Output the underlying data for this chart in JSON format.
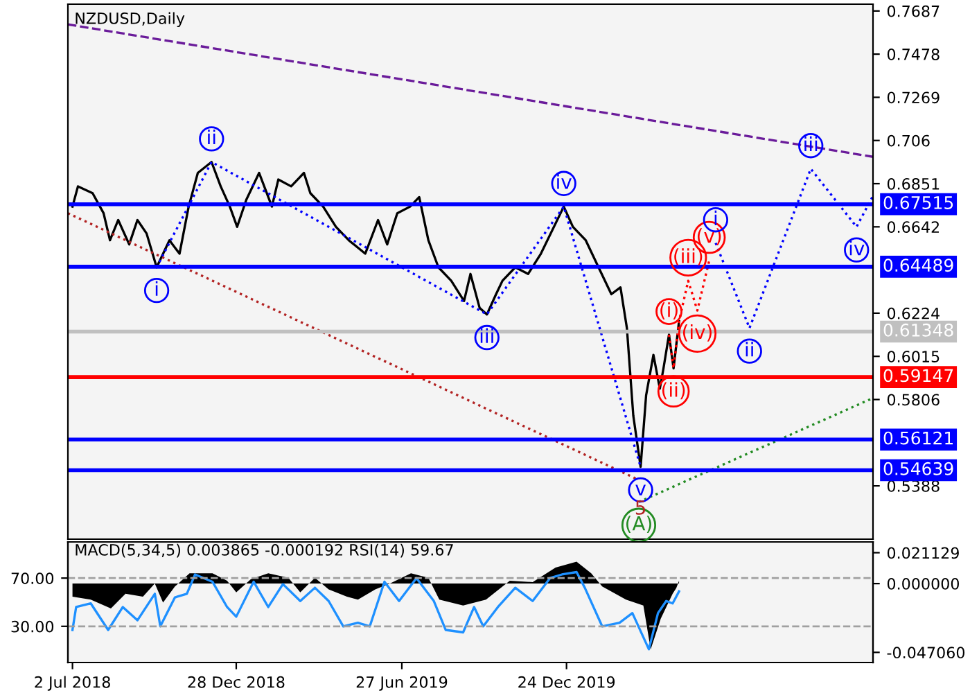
{
  "chart_data": [
    {
      "type": "line",
      "title": "NZDUSD,Daily",
      "xlim": [
        "2018-06-27",
        "2020-11-23"
      ],
      "ylim": [
        0.513,
        0.772
      ],
      "yticks": [
        0.7687,
        0.7478,
        0.7269,
        0.706,
        0.6851,
        0.6642,
        0.6224,
        0.6015,
        0.5806,
        0.5388
      ],
      "tick_labels": "y",
      "series": [
        {
          "color": "#000000",
          "line_style": "solid",
          "x": [
            "2018-07-02",
            "2018-07-08",
            "2018-07-24",
            "2018-08-05",
            "2018-08-12",
            "2018-08-21",
            "2018-09-02",
            "2018-09-11",
            "2018-09-21",
            "2018-10-02",
            "2018-10-16",
            "2018-10-27",
            "2018-11-06",
            "2018-11-16",
            "2018-12-01",
            "2018-12-11",
            "2018-12-21",
            "2018-12-29",
            "2019-01-08",
            "2019-01-22",
            "2019-02-05",
            "2019-02-12",
            "2019-02-26",
            "2019-03-12",
            "2019-03-19",
            "2019-04-02",
            "2019-04-16",
            "2019-04-30",
            "2019-05-18",
            "2019-06-01",
            "2019-06-11",
            "2019-06-22",
            "2019-07-06",
            "2019-07-16",
            "2019-07-26",
            "2019-08-06",
            "2019-08-20",
            "2019-09-03",
            "2019-09-10",
            "2019-09-20",
            "2019-09-28",
            "2019-10-08",
            "2019-10-15",
            "2019-10-29",
            "2019-11-12",
            "2019-11-26",
            "2019-12-21",
            "2019-12-31",
            "2020-01-14",
            "2020-01-28",
            "2020-02-11",
            "2020-02-21",
            "2020-02-28",
            "2020-03-06",
            "2020-03-14",
            "2020-03-20",
            "2020-03-28",
            "2020-04-04",
            "2020-04-08",
            "2020-04-14",
            "2020-04-19",
            "2020-04-25"
          ],
          "values": [
            0.674,
            0.6838,
            0.6805,
            0.6708,
            0.6577,
            0.6675,
            0.6557,
            0.6675,
            0.661,
            0.6446,
            0.6577,
            0.6512,
            0.674,
            0.6903,
            0.6956,
            0.6838,
            0.674,
            0.6642,
            0.6773,
            0.6903,
            0.674,
            0.6871,
            0.6838,
            0.6903,
            0.6805,
            0.674,
            0.6642,
            0.6577,
            0.6512,
            0.6675,
            0.6557,
            0.6708,
            0.674,
            0.6786,
            0.6577,
            0.6446,
            0.6381,
            0.6283,
            0.6414,
            0.625,
            0.6218,
            0.6316,
            0.6381,
            0.6446,
            0.6414,
            0.6512,
            0.674,
            0.6642,
            0.6577,
            0.6446,
            0.6316,
            0.6349,
            0.6152,
            0.5728,
            0.548,
            0.5826,
            0.6022,
            0.5859,
            0.5957,
            0.612,
            0.5957,
            0.6185
          ]
        },
        {
          "color": "#ff0000",
          "line_style": "dotted",
          "x": [
            "2020-04-14",
            "2020-04-19",
            "2020-04-25",
            "2020-05-05",
            "2020-05-15",
            "2020-05-28"
          ],
          "values": [
            0.612,
            0.5957,
            0.6185,
            0.6381,
            0.6237,
            0.6479
          ],
          "value_labels": [
            "(i)",
            "(ii)",
            null,
            "(iii)",
            "(iv)",
            "(v)"
          ]
        },
        {
          "color": "#0000ff",
          "line_style": "dotted",
          "x": [
            "2020-06-04",
            "2020-07-11",
            "2020-09-16",
            "2020-11-05",
            "2020-11-23"
          ],
          "values": [
            0.6564,
            0.6152,
            0.6923,
            0.6642,
            0.6792
          ],
          "value_labels": [
            "i",
            "ii",
            "iii",
            "iv",
            null
          ]
        },
        {
          "color": "#0000ff",
          "line_style": "dotted",
          "x": [
            "2018-10-02",
            "2018-12-01",
            "2019-09-28",
            "2019-12-21",
            "2020-03-14"
          ],
          "values": [
            0.6446,
            0.6956,
            0.6218,
            0.674,
            0.548
          ],
          "value_labels": [
            "i",
            "ii",
            "iii",
            "iv",
            "v"
          ]
        },
        {
          "color": "#6a1b9a",
          "line_style": "dashed",
          "x": [
            "2018-06-27",
            "2020-11-23"
          ],
          "values": [
            0.7622,
            0.6981
          ]
        },
        {
          "color": "#b22222",
          "line_style": "dotted",
          "x": [
            "2018-06-27",
            "2020-03-10"
          ],
          "values": [
            0.6708,
            0.5421
          ]
        },
        {
          "color": "#228b22",
          "line_style": "dotted",
          "x": [
            "2020-03-12",
            "2020-11-23"
          ],
          "values": [
            0.531,
            0.5813
          ],
          "value_labels": [
            "(A)",
            null
          ]
        }
      ],
      "annotations": [
        {
          "text": "5",
          "x": "2020-03-14",
          "y": 0.548
        }
      ],
      "ref_lines": [
        {
          "axis": "y",
          "value": 0.67515,
          "label": "0.67515",
          "color": "#0000ff"
        },
        {
          "axis": "y",
          "value": 0.64489,
          "label": "0.64489",
          "color": "#0000ff"
        },
        {
          "axis": "y",
          "value": 0.61348,
          "label": "0.61348",
          "color": "#c0c0c0"
        },
        {
          "axis": "y",
          "value": 0.59147,
          "label": "0.59147",
          "color": "#ff0000"
        },
        {
          "axis": "y",
          "value": 0.56121,
          "label": "0.56121",
          "color": "#0000ff"
        },
        {
          "axis": "y",
          "value": 0.54639,
          "label": "0.54639",
          "color": "#0000ff"
        }
      ]
    },
    {
      "type": "area",
      "title": "MACD(5,34,5) 0.003865 -0.000192 RSI(14) 59.67",
      "xlim": [
        "2018-06-27",
        "2020-11-23"
      ],
      "xticks": [
        {
          "value": "2018-07-02",
          "label": "2 Jul 2018"
        },
        {
          "value": "2018-12-28",
          "label": "28 Dec 2018"
        },
        {
          "value": "2019-06-27",
          "label": "27 Jun 2019"
        },
        {
          "value": "2019-12-24",
          "label": "24 Dec 2019"
        }
      ],
      "ylim": [
        -0.054,
        0.0285
      ],
      "yticks": [
        0.021129,
        {
          "value": 0,
          "label": "0.000000"
        },
        {
          "value": -0.04706,
          "label": "-0.047060"
        }
      ],
      "y2lim": [
        0,
        100
      ],
      "y2ticks": [
        {
          "value": 70,
          "label": "70.00"
        },
        {
          "value": 30,
          "label": "30.00"
        }
      ],
      "series": [
        {
          "type": "area",
          "color": "#000000",
          "x": [
            "2018-07-02",
            "2018-07-22",
            "2018-08-13",
            "2018-08-29",
            "2018-09-17",
            "2018-09-30",
            "2018-10-09",
            "2018-10-22",
            "2018-11-07",
            "2018-12-02",
            "2018-12-18",
            "2018-12-28",
            "2019-01-13",
            "2019-02-01",
            "2019-02-23",
            "2019-03-08",
            "2019-03-24",
            "2019-04-08",
            "2019-04-28",
            "2019-05-10",
            "2019-05-29",
            "2019-06-14",
            "2019-07-07",
            "2019-07-26",
            "2019-08-07",
            "2019-09-02",
            "2019-09-27",
            "2019-10-23",
            "2019-11-17",
            "2019-12-12",
            "2020-01-04",
            "2020-01-20",
            "2020-02-01",
            "2020-02-27",
            "2020-03-17",
            "2020-03-25",
            "2020-04-05",
            "2020-04-18",
            "2020-04-22",
            "2020-04-25"
          ],
          "values": [
            -0.009,
            -0.011,
            -0.017,
            -0.007,
            -0.009,
            0,
            -0.013,
            -0.002,
            0.007,
            0.007,
            0.002,
            -0.006,
            0.003,
            0.007,
            0.004,
            -0.006,
            0.004,
            -0.004,
            -0.009,
            -0.011,
            -0.004,
            0,
            0.007,
            0.004,
            -0.011,
            -0.015,
            -0.011,
            0.002,
            0.001,
            0.011,
            0.015,
            0.007,
            -0.002,
            -0.011,
            -0.015,
            -0.045,
            -0.024,
            -0.007,
            -0.003,
            0.002
          ]
        },
        {
          "type": "line",
          "axis": "y2",
          "color": "#1e90ff",
          "x": [
            "2018-07-02",
            "2018-07-06",
            "2018-07-22",
            "2018-08-10",
            "2018-08-26",
            "2018-09-11",
            "2018-09-30",
            "2018-10-06",
            "2018-10-22",
            "2018-11-04",
            "2018-11-13",
            "2018-12-02",
            "2018-12-18",
            "2018-12-28",
            "2019-01-16",
            "2019-02-01",
            "2019-02-17",
            "2019-03-08",
            "2019-03-24",
            "2019-04-08",
            "2019-04-24",
            "2019-05-10",
            "2019-05-23",
            "2019-06-08",
            "2019-06-24",
            "2019-07-13",
            "2019-08-01",
            "2019-08-14",
            "2019-09-02",
            "2019-09-14",
            "2019-09-24",
            "2019-10-10",
            "2019-10-29",
            "2019-11-17",
            "2019-12-06",
            "2019-12-19",
            "2020-01-04",
            "2020-01-13",
            "2020-02-01",
            "2020-02-20",
            "2020-03-05",
            "2020-03-23",
            "2020-04-02",
            "2020-04-11",
            "2020-04-18",
            "2020-04-25"
          ],
          "values": [
            27,
            46,
            49,
            27,
            46,
            35,
            57,
            30,
            54,
            57,
            73,
            67,
            46,
            38,
            67,
            46,
            65,
            51,
            62,
            51,
            30,
            33,
            30,
            67,
            51,
            70,
            51,
            27,
            25,
            46,
            30,
            46,
            62,
            51,
            70,
            73,
            75,
            62,
            30,
            33,
            41,
            11,
            41,
            51,
            49,
            59
          ]
        }
      ],
      "ref_lines": [
        {
          "axis": "y2",
          "value": 70,
          "color": "#a0a0a0",
          "line_style": "dashed"
        },
        {
          "axis": "y2",
          "value": 30,
          "color": "#a0a0a0",
          "line_style": "dashed"
        }
      ]
    }
  ]
}
